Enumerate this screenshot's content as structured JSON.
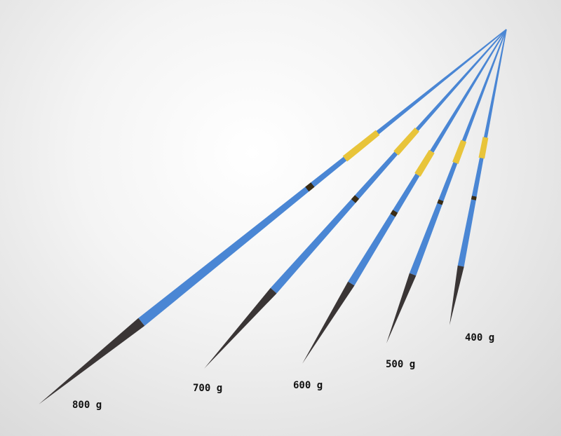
{
  "colors": {
    "shaft": "#4a86d4",
    "grip": "#e8c43a",
    "tip": "#3a3535",
    "band": "#3a2c14"
  },
  "javelins": [
    {
      "label": "800 g"
    },
    {
      "label": "700 g"
    },
    {
      "label": "600 g"
    },
    {
      "label": "500 g"
    },
    {
      "label": "400 g"
    }
  ]
}
